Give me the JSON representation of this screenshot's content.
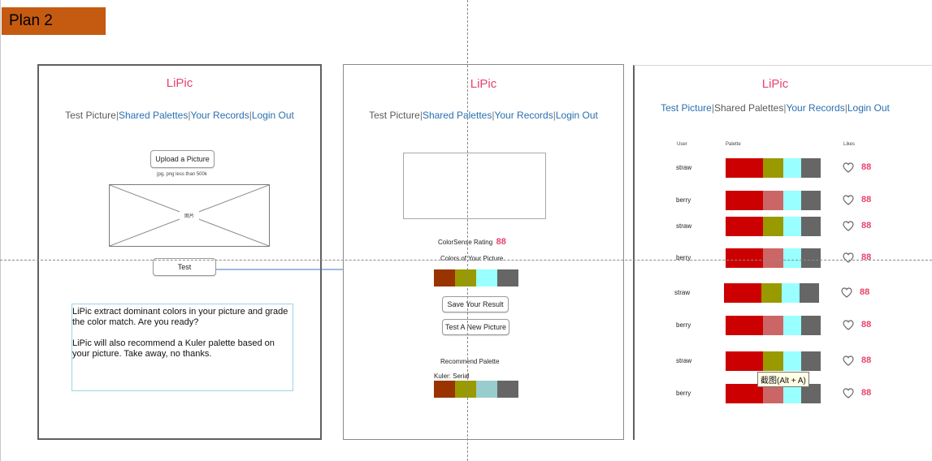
{
  "plan_label": "Plan 2",
  "app_title": "LiPic",
  "nav": {
    "test_picture": "Test Picture",
    "shared_palettes": "Shared Palettes",
    "your_records": "Your Records",
    "login_out": "Login Out"
  },
  "screen1": {
    "upload_button": "Upload a Picture",
    "upload_hint": "jpg, png less than 500k",
    "image_placeholder": "图片",
    "test_button": "Test",
    "description_1": "LiPic extract dominant colors in your picture and grade the color match.  Are you ready?",
    "description_2": "LiPic will also recommend a Kuler palette based on your picture. Take away, no thanks."
  },
  "screen2": {
    "rating_label": "ColorSense Rating",
    "rating_value": "88",
    "colors_label": "Colors of Your Picture",
    "picture_colors": [
      "#993300",
      "#999900",
      "#99ffff",
      "#666666"
    ],
    "save_button": "Save Your Result",
    "new_picture_button": "Test A New Picture",
    "recommend_label": "Recommend Palette",
    "kuler_label": "Kuler: Serial",
    "recommend_colors": [
      "#993300",
      "#999900",
      "#99cccc",
      "#666666"
    ]
  },
  "screen3": {
    "col_user": "User",
    "col_palette": "Palette",
    "col_likes": "Likes",
    "rows": [
      {
        "user": "straw",
        "likes": "88",
        "colors": [
          "#cc0000",
          "#999900",
          "#99ffff",
          "#666666"
        ]
      },
      {
        "user": "berry",
        "likes": "88",
        "colors": [
          "#cc0000",
          "#cc6666",
          "#99ffff",
          "#666666"
        ]
      },
      {
        "user": "straw",
        "likes": "88",
        "colors": [
          "#cc0000",
          "#999900",
          "#99ffff",
          "#666666"
        ]
      },
      {
        "user": "berry",
        "likes": "88",
        "colors": [
          "#cc0000",
          "#cc6666",
          "#99ffff",
          "#666666"
        ]
      },
      {
        "user": "straw",
        "likes": "88",
        "colors": [
          "#cc0000",
          "#999900",
          "#99ffff",
          "#666666"
        ]
      },
      {
        "user": "berry",
        "likes": "88",
        "colors": [
          "#cc0000",
          "#cc6666",
          "#99ffff",
          "#666666"
        ]
      },
      {
        "user": "straw",
        "likes": "88",
        "colors": [
          "#cc0000",
          "#999900",
          "#99ffff",
          "#666666"
        ]
      },
      {
        "user": "berry",
        "likes": "88",
        "colors": [
          "#cc0000",
          "#cc6666",
          "#99ffff",
          "#666666"
        ]
      }
    ],
    "tooltip": "截图(Alt + A)"
  }
}
